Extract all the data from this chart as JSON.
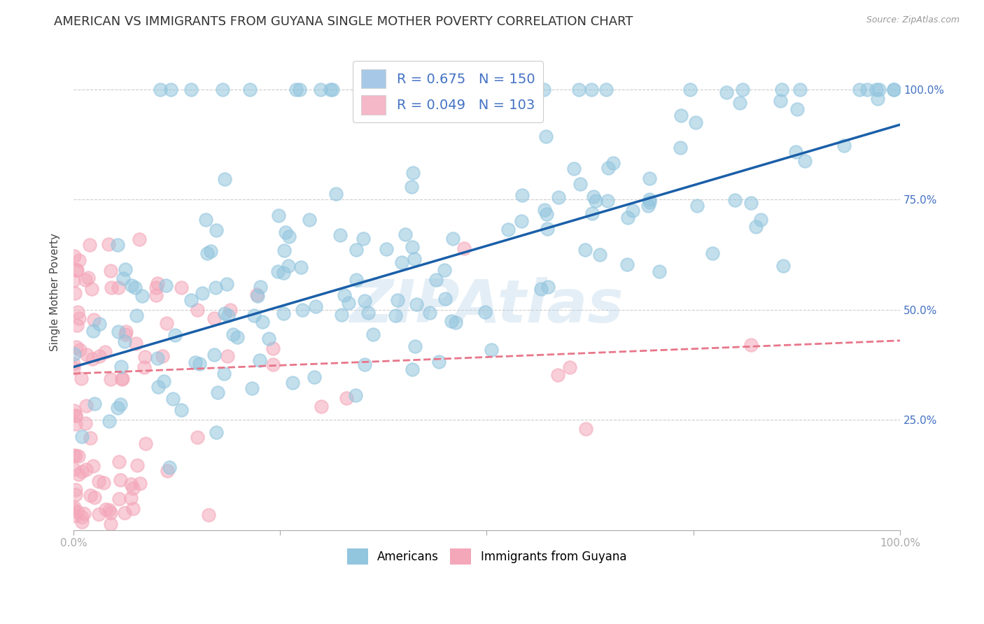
{
  "title": "AMERICAN VS IMMIGRANTS FROM GUYANA SINGLE MOTHER POVERTY CORRELATION CHART",
  "source": "Source: ZipAtlas.com",
  "ylabel": "Single Mother Poverty",
  "xlim": [
    0.0,
    1.0
  ],
  "ylim": [
    0.0,
    1.08
  ],
  "ytick_positions": [
    0.25,
    0.5,
    0.75,
    1.0
  ],
  "watermark": "ZIPAtlas",
  "blue_color": "#92c5de",
  "pink_color": "#f4a7b9",
  "blue_line_color": "#1a5fa8",
  "pink_line_color": "#e8768a",
  "background_color": "#ffffff",
  "grid_color": "#cccccc",
  "title_fontsize": 13,
  "axis_label_fontsize": 11,
  "tick_fontsize": 11,
  "legend_fontsize": 14,
  "R_blue": 0.675,
  "N_blue": 150,
  "R_pink": 0.049,
  "N_pink": 103,
  "blue_line_x0": 0.0,
  "blue_line_y0": 0.37,
  "blue_line_x1": 1.0,
  "blue_line_y1": 0.92,
  "pink_line_x0": 0.0,
  "pink_line_y0": 0.355,
  "pink_line_x1": 1.0,
  "pink_line_y1": 0.43
}
